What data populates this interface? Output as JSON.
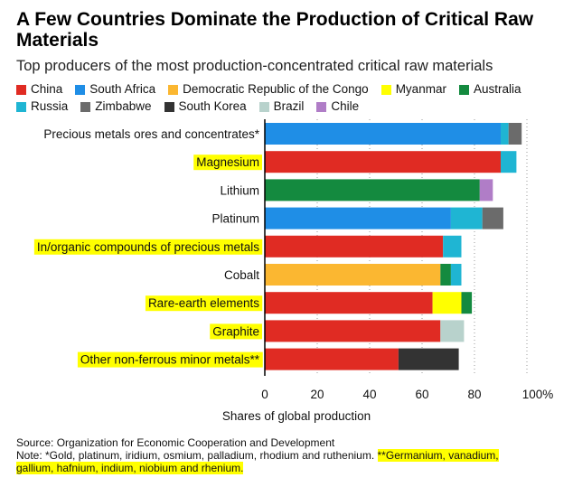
{
  "title": "A Few Countries Dominate the Production of Critical Raw Materials",
  "subtitle": "Top producers of the most production-concentrated critical raw materials",
  "legend": [
    [
      {
        "name": "China",
        "color": "#e02b23"
      },
      {
        "name": "South Africa",
        "color": "#1f8ee6"
      },
      {
        "name": "Democratic Republic of the Congo",
        "color": "#fbb731"
      },
      {
        "name": "Myanmar",
        "color": "#ffff00"
      },
      {
        "name": "Australia",
        "color": "#148a3f"
      }
    ],
    [
      {
        "name": "Russia",
        "color": "#1fb5d3"
      },
      {
        "name": "Zimbabwe",
        "color": "#6b6b6b"
      },
      {
        "name": "South Korea",
        "color": "#333333"
      },
      {
        "name": "Brazil",
        "color": "#b8d2cc"
      },
      {
        "name": "Chile",
        "color": "#b07dc7"
      }
    ]
  ],
  "chart_data": {
    "type": "bar",
    "orientation": "horizontal",
    "stacked": true,
    "title": "A Few Countries Dominate the Production of Critical Raw Materials",
    "xlabel": "Shares of global production",
    "xlim": [
      0,
      100
    ],
    "xticks": [
      "0",
      "20",
      "40",
      "60",
      "80",
      "100%"
    ],
    "categories": [
      {
        "label": "Precious metals ores and concentrates*",
        "highlight": false,
        "segments": [
          {
            "country": "South Africa",
            "value": 90
          },
          {
            "country": "Russia",
            "value": 3
          },
          {
            "country": "Zimbabwe",
            "value": 5
          }
        ]
      },
      {
        "label": "Magnesium",
        "highlight": true,
        "segments": [
          {
            "country": "China",
            "value": 90
          },
          {
            "country": "Russia",
            "value": 6
          }
        ]
      },
      {
        "label": "Lithium",
        "highlight": false,
        "segments": [
          {
            "country": "Australia",
            "value": 82
          },
          {
            "country": "Chile",
            "value": 5
          }
        ]
      },
      {
        "label": "Platinum",
        "highlight": false,
        "segments": [
          {
            "country": "South Africa",
            "value": 71
          },
          {
            "country": "Russia",
            "value": 12
          },
          {
            "country": "Zimbabwe",
            "value": 8
          }
        ]
      },
      {
        "label": "In/organic compounds of precious metals",
        "highlight": true,
        "segments": [
          {
            "country": "China",
            "value": 68
          },
          {
            "country": "Russia",
            "value": 7
          }
        ]
      },
      {
        "label": "Cobalt",
        "highlight": false,
        "segments": [
          {
            "country": "Democratic Republic of the Congo",
            "value": 67
          },
          {
            "country": "Australia",
            "value": 4
          },
          {
            "country": "Russia",
            "value": 4
          }
        ]
      },
      {
        "label": "Rare-earth elements",
        "highlight": true,
        "segments": [
          {
            "country": "China",
            "value": 64
          },
          {
            "country": "Myanmar",
            "value": 11
          },
          {
            "country": "Australia",
            "value": 4
          }
        ]
      },
      {
        "label": "Graphite",
        "highlight": true,
        "segments": [
          {
            "country": "China",
            "value": 67
          },
          {
            "country": "Brazil",
            "value": 9
          }
        ]
      },
      {
        "label": "Other non-ferrous minor metals**",
        "highlight": true,
        "segments": [
          {
            "country": "China",
            "value": 51
          },
          {
            "country": "South Korea",
            "value": 23
          }
        ]
      }
    ]
  },
  "footer": {
    "source": "Source: Organization for Economic Cooperation and Development",
    "note_prefix": "Note: *Gold, platinum, iridium, osmium, palladium, rhodium and ruthenium. ",
    "note_highlight_1": "**Germanium, vanadium,",
    "note_highlight_2": "gallium, hafnium, indium, niobium and rhenium."
  }
}
